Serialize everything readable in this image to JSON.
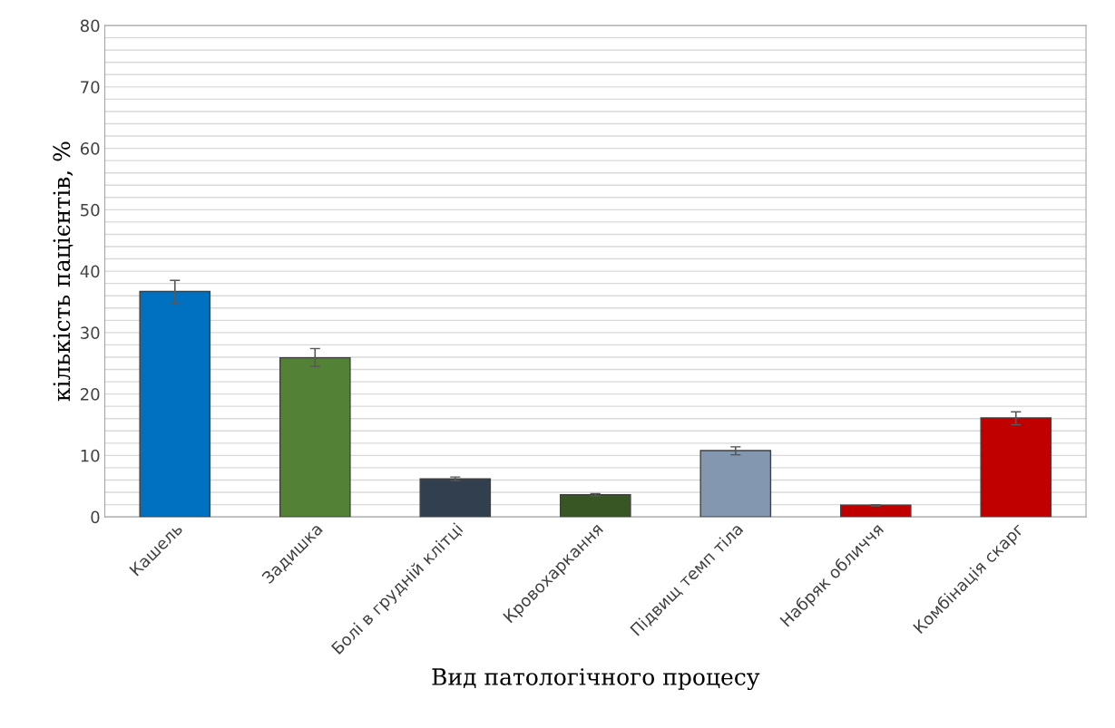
{
  "chart_data": {
    "type": "bar",
    "xlabel": "Вид патологічного процесу",
    "ylabel": "кількість пацієнтів, %",
    "categories": [
      "Кашель",
      "Задишка",
      "Болі в грудній клітці",
      "Кровохаркання",
      "Підвищ темп тіла",
      "Набряк обличчя",
      "Комбінація скарг"
    ],
    "values": [
      36.7,
      25.9,
      6.2,
      3.6,
      10.8,
      1.9,
      16.1
    ],
    "colors": [
      "#0070c0",
      "#538135",
      "#323f4f",
      "#375623",
      "#8497b0",
      "#c00000",
      "#c00000"
    ],
    "errors": [
      [
        34.7,
        38.5
      ],
      [
        24.5,
        27.4
      ],
      [
        5.9,
        6.5
      ],
      [
        3.4,
        3.8
      ],
      [
        10.1,
        11.4
      ],
      [
        1.8,
        2.0
      ],
      [
        15.0,
        17.1
      ]
    ],
    "ylim": [
      0,
      80
    ],
    "yticks": [
      0,
      {
        "value": 2,
        "label": null
      },
      {
        "value": 4,
        "label": null
      },
      {
        "value": 6,
        "label": null
      },
      {
        "value": 8,
        "label": null
      },
      10,
      {
        "value": 12,
        "label": null
      },
      {
        "value": 14,
        "label": null
      },
      {
        "value": 16,
        "label": null
      },
      {
        "value": 18,
        "label": null
      },
      20,
      {
        "value": 22,
        "label": null
      },
      {
        "value": 24,
        "label": null
      },
      {
        "value": 26,
        "label": null
      },
      {
        "value": 28,
        "label": null
      },
      30,
      {
        "value": 32,
        "label": null
      },
      {
        "value": 34,
        "label": null
      },
      {
        "value": 36,
        "label": null
      },
      {
        "value": 38,
        "label": null
      },
      40,
      {
        "value": 42,
        "label": null
      },
      {
        "value": 44,
        "label": null
      },
      {
        "value": 46,
        "label": null
      },
      {
        "value": 48,
        "label": null
      },
      50,
      {
        "value": 52,
        "label": null
      },
      {
        "value": 54,
        "label": null
      },
      {
        "value": 56,
        "label": null
      },
      {
        "value": 58,
        "label": null
      },
      60,
      {
        "value": 62,
        "label": null
      },
      {
        "value": 64,
        "label": null
      },
      {
        "value": 66,
        "label": null
      },
      {
        "value": 68,
        "label": null
      },
      70,
      {
        "value": 72,
        "label": null
      },
      {
        "value": 74,
        "label": null
      },
      {
        "value": 76,
        "label": null
      },
      {
        "value": 78,
        "label": null
      },
      80
    ],
    "grid": "y"
  }
}
